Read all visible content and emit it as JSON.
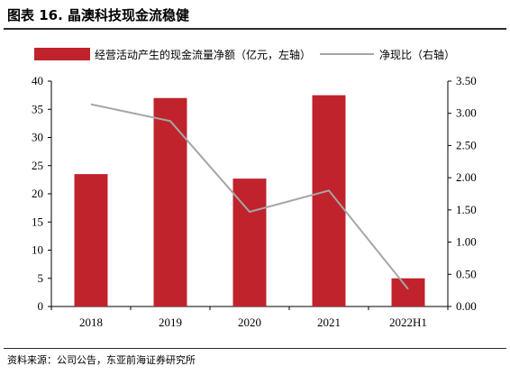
{
  "header": {
    "title": "图表 16. 晶澳科技现金流稳健"
  },
  "footer": {
    "source": "资料来源：公司公告，东亚前海证券研究所"
  },
  "chart_data": {
    "type": "bar",
    "categories": [
      "2018",
      "2019",
      "2020",
      "2021",
      "2022H1"
    ],
    "series": [
      {
        "name": "经营活动产生的现金流量净额（亿元，左轴）",
        "type": "bar",
        "axis": "left",
        "color": "#c0232c",
        "values": [
          23.5,
          37.0,
          22.7,
          37.5,
          5.0
        ]
      },
      {
        "name": "净现比（右轴）",
        "type": "line",
        "axis": "right",
        "color": "#a6a6a6",
        "values": [
          3.14,
          2.88,
          1.47,
          1.8,
          0.27
        ]
      }
    ],
    "y_left": {
      "range": [
        0,
        40
      ],
      "ticks": [
        "0",
        "5",
        "10",
        "15",
        "20",
        "25",
        "30",
        "35",
        "40"
      ]
    },
    "y_right": {
      "range": [
        0,
        3.5
      ],
      "ticks": [
        "0.00",
        "0.50",
        "1.00",
        "1.50",
        "2.00",
        "2.50",
        "3.00",
        "3.50"
      ]
    },
    "grid": false,
    "legend": "top"
  }
}
